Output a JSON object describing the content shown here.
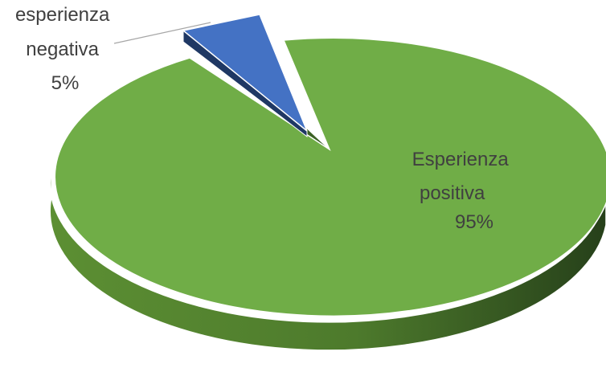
{
  "chart_data": {
    "type": "pie",
    "title": "",
    "slices": [
      {
        "label_lines": [
          "Esperienza",
          "positiva"
        ],
        "percent_label": "95%",
        "value": 95,
        "color": "#70ad47"
      },
      {
        "label_lines": [
          "esperienza",
          "negativa"
        ],
        "percent_label": "5%",
        "value": 5,
        "color": "#4472c4"
      }
    ],
    "legend": "none",
    "exploded": "esperienza negativa",
    "style": "3d"
  }
}
